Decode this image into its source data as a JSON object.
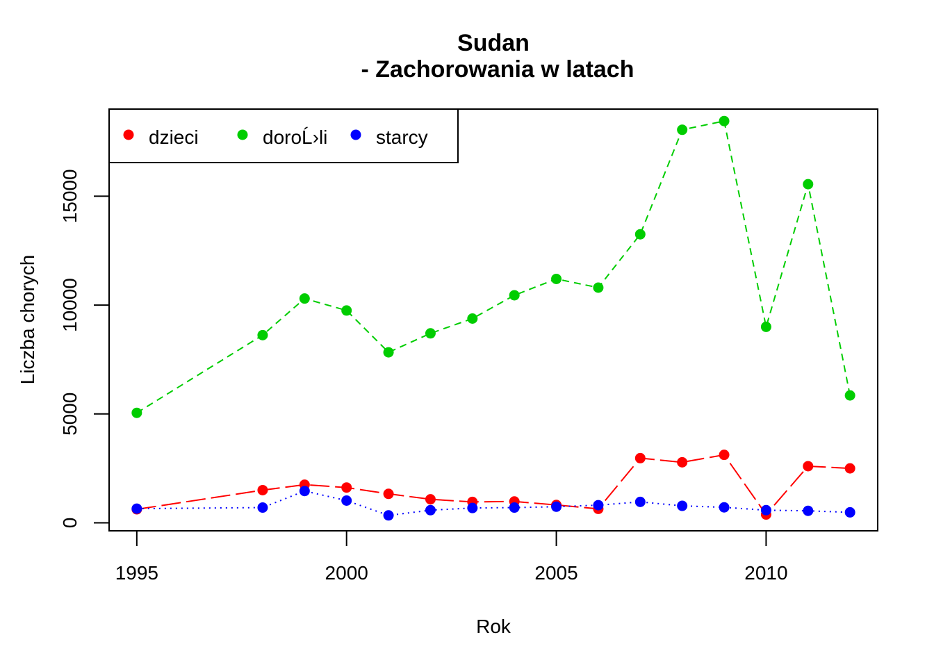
{
  "chart_data": {
    "type": "line",
    "title": "Sudan",
    "subtitle": "- Zachorowania w latach",
    "xlabel": "Rok",
    "ylabel": "Liczba chorych",
    "x": [
      1995,
      1998,
      1999,
      2000,
      2001,
      2002,
      2003,
      2004,
      2005,
      2006,
      2007,
      2008,
      2009,
      2010,
      2011,
      2012
    ],
    "x_ticks": [
      "1995",
      "2000",
      "2005",
      "2010"
    ],
    "y_ticks": [
      "0",
      "5000",
      "10000",
      "15000"
    ],
    "xlim": [
      1994.34,
      2012.66
    ],
    "ylim": [
      -368,
      19000
    ],
    "grid": false,
    "legend_position": "top-left",
    "series": [
      {
        "name": "dzieci",
        "color": "#ff0000",
        "line_style": "longdash",
        "values": [
          620,
          1500,
          1750,
          1620,
          1330,
          1080,
          960,
          980,
          820,
          640,
          2970,
          2780,
          3120,
          380,
          2600,
          2500
        ]
      },
      {
        "name": "doroĹ›li",
        "color": "#00cd00",
        "line_style": "dashed",
        "values": [
          5050,
          8620,
          10300,
          9750,
          7830,
          8700,
          9380,
          10450,
          11200,
          10800,
          13250,
          18050,
          18450,
          9000,
          15550,
          5850
        ]
      },
      {
        "name": "starcy",
        "color": "#0000ff",
        "line_style": "dotted",
        "values": [
          650,
          700,
          1460,
          1020,
          340,
          580,
          680,
          700,
          740,
          810,
          960,
          780,
          710,
          580,
          550,
          480
        ]
      }
    ]
  }
}
